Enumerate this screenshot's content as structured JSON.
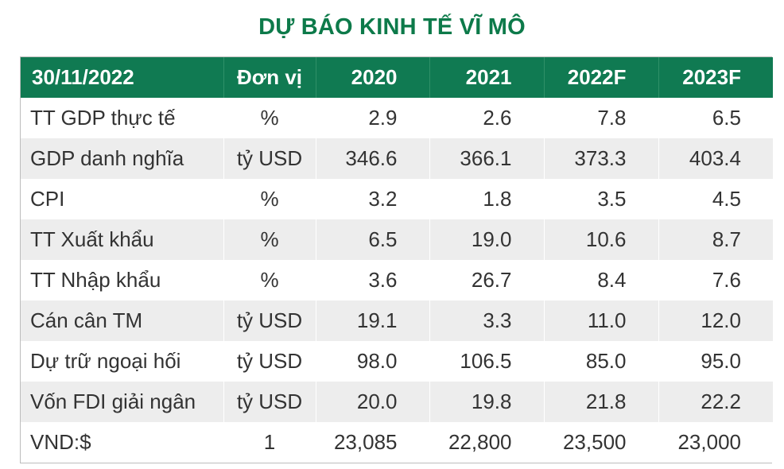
{
  "title": "DỰ BÁO KINH TẾ VĨ MÔ",
  "colors": {
    "title_green": "#0d7a4a",
    "header_green": "#107a52",
    "stripe_gray": "#ededed"
  },
  "table": {
    "headers": [
      "30/11/2022",
      "Đơn vị",
      "2020",
      "2021",
      "2022F",
      "2023F"
    ],
    "rows": [
      {
        "label": "TT GDP thực tế",
        "unit": "%",
        "values": [
          "2.9",
          "2.6",
          "7.8",
          "6.5"
        ]
      },
      {
        "label": "GDP danh nghĩa",
        "unit": "tỷ USD",
        "values": [
          "346.6",
          "366.1",
          "373.3",
          "403.4"
        ]
      },
      {
        "label": "CPI",
        "unit": "%",
        "values": [
          "3.2",
          "1.8",
          "3.5",
          "4.5"
        ]
      },
      {
        "label": "TT Xuất khẩu",
        "unit": "%",
        "values": [
          "6.5",
          "19.0",
          "10.6",
          "8.7"
        ]
      },
      {
        "label": "TT Nhập khẩu",
        "unit": "%",
        "values": [
          "3.6",
          "26.7",
          "8.4",
          "7.6"
        ]
      },
      {
        "label": "Cán cân TM",
        "unit": "tỷ USD",
        "values": [
          "19.1",
          "3.3",
          "11.0",
          "12.0"
        ]
      },
      {
        "label": "Dự trữ ngoại hối",
        "unit": "tỷ USD",
        "values": [
          "98.0",
          "106.5",
          "85.0",
          "95.0"
        ]
      },
      {
        "label": "Vốn FDI giải ngân",
        "unit": "tỷ USD",
        "values": [
          "20.0",
          "19.8",
          "21.8",
          "22.2"
        ]
      },
      {
        "label": "VND:$",
        "unit": "1",
        "values": [
          "23,085",
          "22,800",
          "23,500",
          "23,000"
        ]
      }
    ]
  }
}
